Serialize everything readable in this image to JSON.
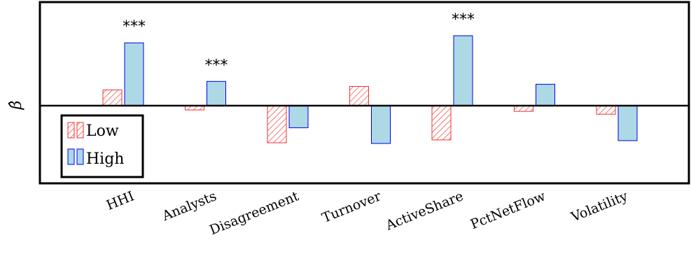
{
  "chart_data": {
    "type": "bar",
    "ylabel": "β̂",
    "categories": [
      "HHI",
      "Analysts",
      "Disagreement",
      "Turnover",
      "ActiveShare",
      "PctNetFlow",
      "Volatility"
    ],
    "series": [
      {
        "name": "Low",
        "values": [
          0.22,
          -0.06,
          -0.52,
          0.27,
          -0.48,
          -0.08,
          -0.12
        ],
        "color": "#ee3333",
        "fill": "hatched"
      },
      {
        "name": "High",
        "values": [
          0.88,
          0.34,
          -0.31,
          -0.53,
          0.98,
          0.3,
          -0.49
        ],
        "color": "#add8e6",
        "stroke": "#0000ee"
      }
    ],
    "significance": [
      "***",
      "***",
      "",
      "",
      "***",
      "",
      ""
    ],
    "ylim": [
      -1.08,
      1.45
    ],
    "zero_line": true,
    "legend_position": "bottom-left"
  }
}
